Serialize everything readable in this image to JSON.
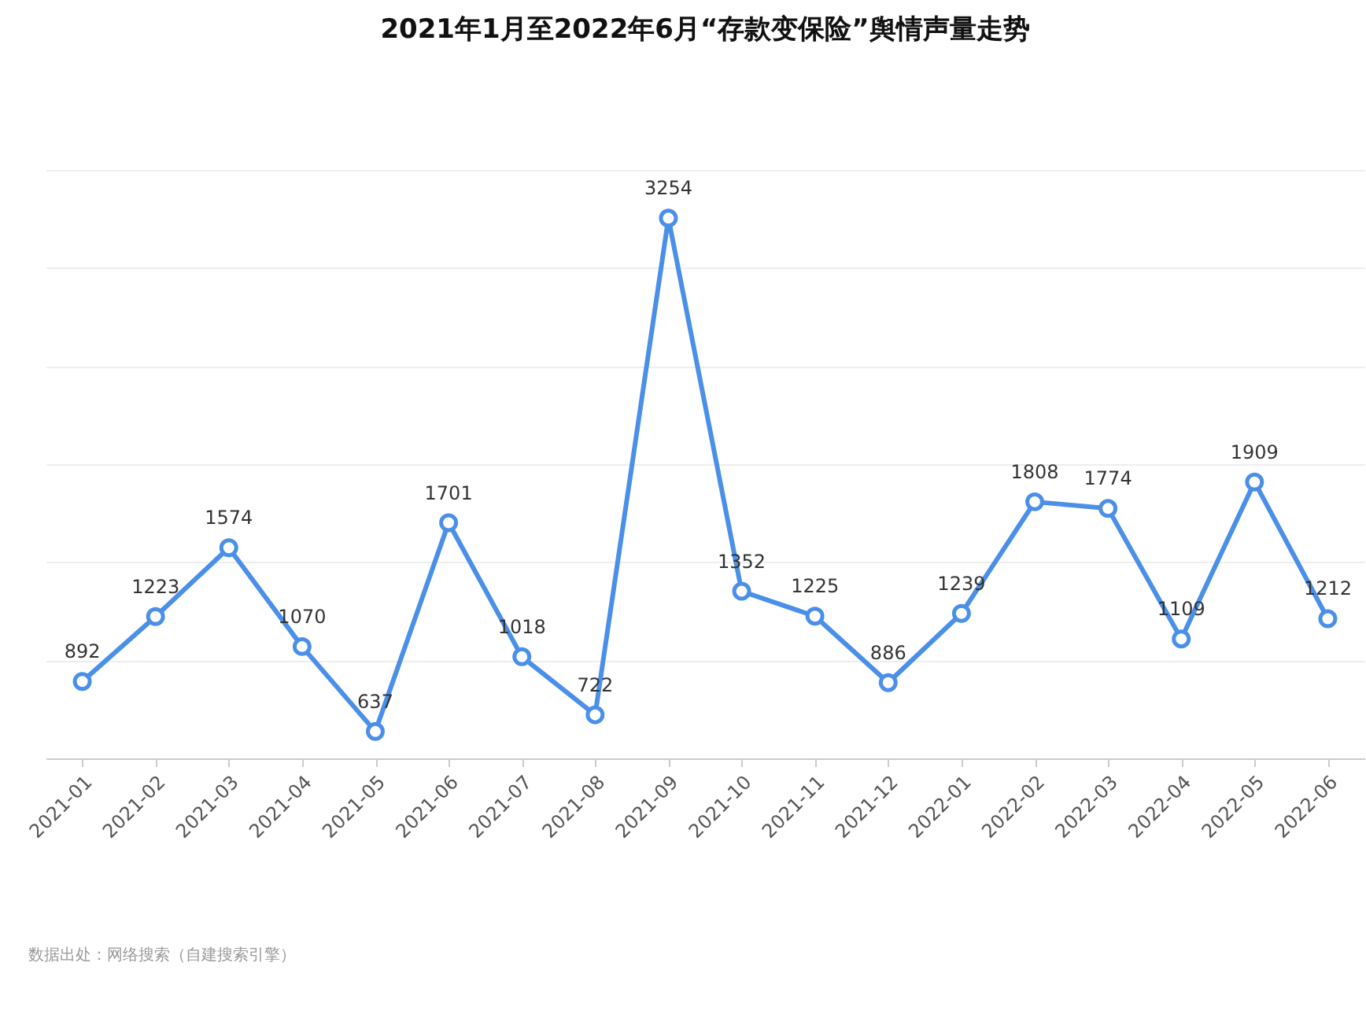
{
  "chart_data": {
    "type": "line",
    "title": "2021年1月至2022年6月“存款变保险”舆情声量走势",
    "categories": [
      "2021-01",
      "2021-02",
      "2021-03",
      "2021-04",
      "2021-05",
      "2021-06",
      "2021-07",
      "2021-08",
      "2021-09",
      "2021-10",
      "2021-11",
      "2021-12",
      "2022-01",
      "2022-02",
      "2022-03",
      "2022-04",
      "2022-05",
      "2022-06"
    ],
    "series": [
      {
        "color": "#4a8fe8",
        "values": [
          892,
          1223,
          1574,
          1070,
          637,
          1701,
          1018,
          722,
          3254,
          1352,
          1225,
          886,
          1239,
          1808,
          1774,
          1109,
          1909,
          1212
        ]
      }
    ],
    "ylim": [
      500,
      3500
    ],
    "yticks": [
      {
        "value": 500,
        "label": null
      },
      {
        "value": 1000,
        "label": null
      },
      {
        "value": 1500,
        "label": null
      },
      {
        "value": 2000,
        "label": null
      },
      {
        "value": 2500,
        "label": null
      },
      {
        "value": 3000,
        "label": null
      },
      {
        "value": 3500,
        "label": null
      }
    ],
    "tick_labels": "x",
    "grid": "y",
    "data_labels": true,
    "marker": "circle",
    "line_style": "solid",
    "legend": false,
    "annotations": [
      "数据出处：网络搜索（自建搜索引擎）"
    ]
  }
}
